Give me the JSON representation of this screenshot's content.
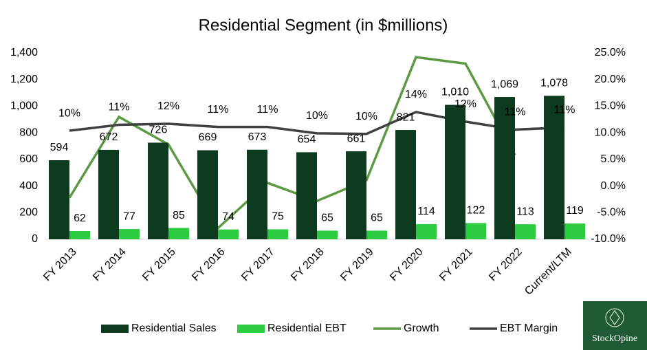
{
  "chart_data": {
    "type": "bar-line",
    "title": "Residential Segment (in $millions)",
    "categories": [
      "FY 2013",
      "FY 2014",
      "FY 2015",
      "FY 2016",
      "FY 2017",
      "FY 2018",
      "FY 2019",
      "FY 2020",
      "FY 2021",
      "FY 2022",
      "Current/LTM"
    ],
    "series": [
      {
        "name": "Residential Sales",
        "type": "bar",
        "color": "#0c3b1f",
        "values": [
          594,
          672,
          726,
          669,
          673,
          654,
          661,
          821,
          1010,
          1069,
          1078
        ],
        "value_labels": [
          "594",
          "672",
          "726",
          "669",
          "673",
          "654",
          "661",
          "821",
          "1,010",
          "1,069",
          "1,078"
        ]
      },
      {
        "name": "Residential EBT",
        "type": "bar",
        "color": "#2ecc40",
        "values": [
          62,
          77,
          85,
          74,
          75,
          65,
          65,
          114,
          122,
          113,
          119
        ]
      },
      {
        "name": "Growth",
        "type": "line",
        "axis": "y2",
        "color": "#5b9a42",
        "values": [
          -2.2,
          13.0,
          7.8,
          -7.9,
          0.6,
          -2.8,
          1.1,
          24.2,
          23.0,
          5.8,
          null
        ]
      },
      {
        "name": "EBT Margin",
        "type": "line",
        "axis": "y2",
        "color": "#404040",
        "values": [
          10.4,
          11.5,
          11.7,
          11.1,
          11.1,
          9.9,
          9.8,
          13.9,
          12.1,
          10.6,
          11.0
        ],
        "value_labels": [
          "10%",
          "11%",
          "12%",
          "11%",
          "11%",
          "10%",
          "10%",
          "14%",
          "12%",
          "11%",
          "11%"
        ]
      }
    ],
    "ylim": [
      0,
      1400
    ],
    "yticks": [
      0,
      200,
      400,
      600,
      800,
      {
        "value": 1000,
        "label": "1,000"
      },
      {
        "value": 1200,
        "label": "1,200"
      },
      {
        "value": 1400,
        "label": "1,400"
      }
    ],
    "y2lim": [
      -10,
      25
    ],
    "y2ticks": [
      {
        "value": -10,
        "label": "-10.0%"
      },
      {
        "value": -5,
        "label": "-5.0%"
      },
      {
        "value": 0,
        "label": "0.0%"
      },
      {
        "value": 5,
        "label": "5.0%"
      },
      {
        "value": 10,
        "label": "10.0%"
      },
      {
        "value": 15,
        "label": "15.0%"
      },
      {
        "value": 20,
        "label": "20.0%"
      },
      {
        "value": 25,
        "label": "25.0%"
      }
    ],
    "legend": "bottom",
    "logo": "StockOpine"
  }
}
